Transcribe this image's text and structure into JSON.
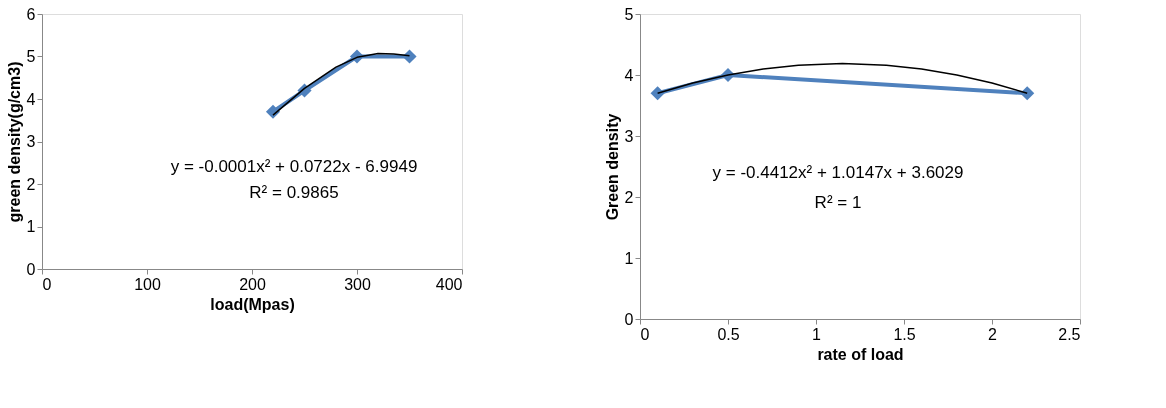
{
  "chart_data": [
    {
      "type": "line",
      "xlabel": "load(Mpas)",
      "ylabel": "green density(g/cm3)",
      "xlim": [
        0,
        400
      ],
      "xticks": [
        0,
        100,
        200,
        300,
        400
      ],
      "ylim": [
        0,
        6
      ],
      "yticks": [
        0,
        1,
        2,
        3,
        4,
        5,
        6
      ],
      "grid": false,
      "marker": "diamond",
      "series": [
        {
          "color": "#4f81bd",
          "x": [
            220,
            250,
            300,
            350
          ],
          "values": [
            3.7,
            4.2,
            5.0,
            5.0
          ]
        },
        {
          "type": "line",
          "marker": "none",
          "color": "#000000",
          "x": [
            220,
            250,
            280,
            300,
            320,
            335,
            350
          ],
          "values": [
            3.62,
            4.25,
            4.75,
            4.98,
            5.07,
            5.06,
            5.02
          ]
        }
      ],
      "annotations": [
        "y = -0.0001x² + 0.0722x - 6.9949",
        "R² = 0.9865"
      ]
    },
    {
      "type": "line",
      "xlabel": "rate of load",
      "ylabel": "Green density",
      "xlim": [
        0,
        2.5
      ],
      "xticks": [
        0,
        0.5,
        1,
        1.5,
        2,
        2.5
      ],
      "ylim": [
        0,
        5
      ],
      "yticks": [
        0,
        1,
        2,
        3,
        4,
        5
      ],
      "grid": false,
      "marker": "diamond",
      "series": [
        {
          "color": "#4f81bd",
          "x": [
            0.1,
            0.5,
            2.2
          ],
          "values": [
            3.7,
            4.0,
            3.7
          ]
        },
        {
          "type": "line",
          "marker": "none",
          "color": "#000000",
          "x": [
            0.1,
            0.3,
            0.5,
            0.7,
            0.9,
            1.15,
            1.4,
            1.6,
            1.8,
            2.0,
            2.2
          ],
          "values": [
            3.7,
            3.87,
            4.0,
            4.1,
            4.16,
            4.19,
            4.16,
            4.1,
            4.0,
            3.87,
            3.7
          ]
        }
      ],
      "annotations": [
        "y = -0.4412x² + 1.0147x + 3.6029",
        "R² = 1"
      ]
    }
  ]
}
